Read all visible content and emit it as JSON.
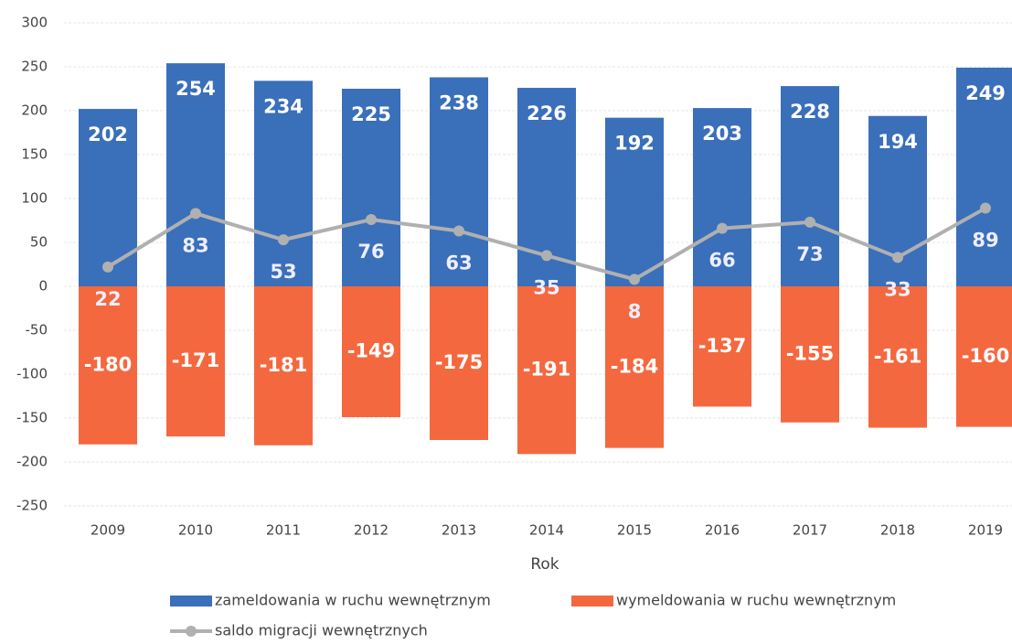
{
  "chart_data": {
    "type": "bar",
    "x_label": "Rok",
    "categories": [
      "2009",
      "2010",
      "2011",
      "2012",
      "2013",
      "2014",
      "2015",
      "2016",
      "2017",
      "2018",
      "2019"
    ],
    "series": [
      {
        "name": "zameldowania w ruchu wewnętrznym",
        "type": "bar",
        "color": "#3a6fba",
        "values": [
          202,
          254,
          234,
          225,
          238,
          226,
          192,
          203,
          228,
          194,
          249
        ]
      },
      {
        "name": "wymeldowania w ruchu wewnętrznym",
        "type": "bar",
        "color": "#f4683f",
        "values": [
          -180,
          -171,
          -181,
          -149,
          -175,
          -191,
          -184,
          -137,
          -155,
          -161,
          -160
        ]
      },
      {
        "name": "saldo migracji wewnętrznych",
        "type": "line",
        "color": "#b0b0b0",
        "values": [
          22,
          83,
          53,
          76,
          63,
          35,
          8,
          66,
          73,
          33,
          89
        ]
      }
    ],
    "ylim": [
      -250,
      300
    ],
    "yticks": [
      -250,
      -200,
      -150,
      -100,
      -50,
      0,
      50,
      100,
      150,
      200,
      250,
      300
    ],
    "grid": true,
    "legend": "bottom"
  }
}
